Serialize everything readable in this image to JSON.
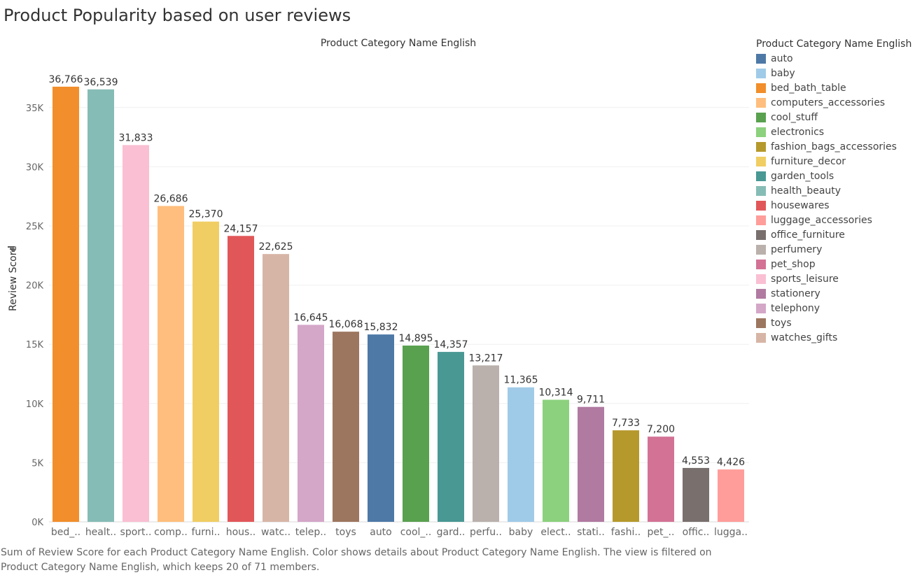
{
  "title": "Product Popularity based on user reviews",
  "caption": "Sum of Review Score for each Product Category Name English.  Color shows details about Product Category Name English. The view is filtered on Product Category Name English, which keeps 20 of 71 members.",
  "legend": {
    "title": "Product Category Name English",
    "items": [
      {
        "label": "auto",
        "color": "#4e79a7"
      },
      {
        "label": "baby",
        "color": "#a0cbe8"
      },
      {
        "label": "bed_bath_table",
        "color": "#f28e2b"
      },
      {
        "label": "computers_accessories",
        "color": "#ffbe7d"
      },
      {
        "label": "cool_stuff",
        "color": "#59a14f"
      },
      {
        "label": "electronics",
        "color": "#8cd17d"
      },
      {
        "label": "fashion_bags_accessories",
        "color": "#b6992d"
      },
      {
        "label": "furniture_decor",
        "color": "#f1ce63"
      },
      {
        "label": "garden_tools",
        "color": "#499894"
      },
      {
        "label": "health_beauty",
        "color": "#86bcb6"
      },
      {
        "label": "housewares",
        "color": "#e15759"
      },
      {
        "label": "luggage_accessories",
        "color": "#ff9d9a"
      },
      {
        "label": "office_furniture",
        "color": "#79706e"
      },
      {
        "label": "perfumery",
        "color": "#bab0ac"
      },
      {
        "label": "pet_shop",
        "color": "#d37295"
      },
      {
        "label": "sports_leisure",
        "color": "#fabfd2"
      },
      {
        "label": "stationery",
        "color": "#b07aa1"
      },
      {
        "label": "telephony",
        "color": "#d4a6c8"
      },
      {
        "label": "toys",
        "color": "#9d7660"
      },
      {
        "label": "watches_gifts",
        "color": "#d7b5a6"
      }
    ]
  },
  "chart_data": {
    "type": "bar",
    "title": "Product Category Name English",
    "ylabel": "Review Score",
    "ylim": [
      0,
      38000
    ],
    "yticks": [
      0,
      5000,
      10000,
      15000,
      20000,
      25000,
      30000,
      35000
    ],
    "ytick_labels": [
      "0K",
      "5K",
      "10K",
      "15K",
      "20K",
      "25K",
      "30K",
      "35K"
    ],
    "grid": true,
    "legend_position": "right",
    "categories": [
      "bed_..",
      "healt..",
      "sport..",
      "comp..",
      "furni..",
      "hous..",
      "watc..",
      "telep..",
      "toys",
      "auto",
      "cool_..",
      "gard..",
      "perfu..",
      "baby",
      "elect..",
      "stati..",
      "fashi..",
      "pet_..",
      "offic..",
      "lugga.."
    ],
    "values": [
      36766,
      36539,
      31833,
      26686,
      25370,
      24157,
      22625,
      16645,
      16068,
      15832,
      14895,
      14357,
      13217,
      11365,
      10314,
      9711,
      7733,
      7200,
      4553,
      4426
    ],
    "value_labels": [
      "36,766",
      "36,539",
      "31,833",
      "26,686",
      "25,370",
      "24,157",
      "22,625",
      "16,645",
      "16,068",
      "15,832",
      "14,895",
      "14,357",
      "13,217",
      "11,365",
      "10,314",
      "9,711",
      "7,733",
      "7,200",
      "4,553",
      "4,426"
    ],
    "colors": [
      "#f28e2b",
      "#86bcb6",
      "#fabfd2",
      "#ffbe7d",
      "#f1ce63",
      "#e15759",
      "#d7b5a6",
      "#d4a6c8",
      "#9d7660",
      "#4e79a7",
      "#59a14f",
      "#499894",
      "#bab0ac",
      "#a0cbe8",
      "#8cd17d",
      "#b07aa1",
      "#b6992d",
      "#d37295",
      "#79706e",
      "#ff9d9a"
    ]
  }
}
